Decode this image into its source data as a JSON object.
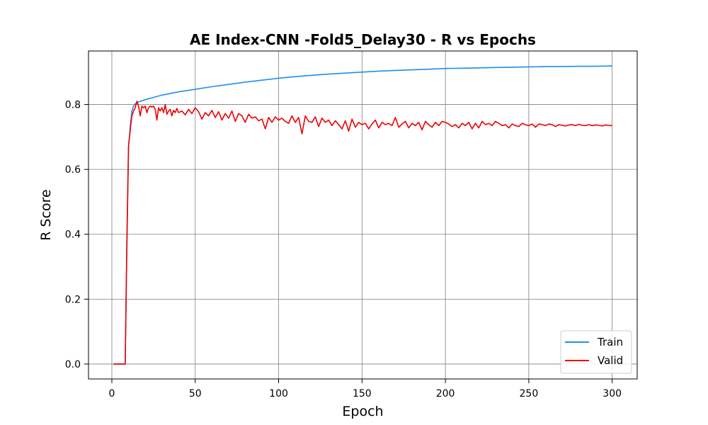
{
  "chart_data": {
    "type": "line",
    "title": "AE Index-CNN -Fold5_Delay30 - R vs Epochs",
    "xlabel": "Epoch",
    "ylabel": "R Score",
    "xlim": [
      -14,
      315
    ],
    "ylim": [
      -0.046,
      0.965
    ],
    "xticks": [
      0,
      50,
      100,
      150,
      200,
      250,
      300
    ],
    "yticks": [
      0.0,
      0.2,
      0.4,
      0.6,
      0.8
    ],
    "ytick_labels": [
      "0.0",
      "0.2",
      "0.4",
      "0.6",
      "0.8"
    ],
    "grid": true,
    "legend_position": "lower-right",
    "series": [
      {
        "name": "Train",
        "color": "#1f8ef1",
        "x": [
          1,
          8,
          9,
          10,
          11,
          12,
          13,
          14,
          15,
          16,
          20,
          25,
          30,
          40,
          50,
          60,
          70,
          80,
          90,
          100,
          110,
          120,
          130,
          140,
          150,
          160,
          170,
          180,
          190,
          200,
          210,
          220,
          230,
          240,
          250,
          260,
          270,
          280,
          290,
          300
        ],
        "y": [
          0.0,
          0.0,
          0.35,
          0.67,
          0.73,
          0.78,
          0.795,
          0.802,
          0.805,
          0.808,
          0.815,
          0.822,
          0.829,
          0.839,
          0.847,
          0.855,
          0.862,
          0.869,
          0.875,
          0.881,
          0.886,
          0.89,
          0.894,
          0.897,
          0.9,
          0.903,
          0.905,
          0.907,
          0.909,
          0.911,
          0.912,
          0.913,
          0.914,
          0.915,
          0.916,
          0.917,
          0.917,
          0.918,
          0.918,
          0.919
        ]
      },
      {
        "name": "Valid",
        "color": "#ee0000",
        "x": [
          1,
          8,
          9,
          10,
          11,
          12,
          13,
          14,
          15,
          16,
          17,
          18,
          19,
          20,
          21,
          22,
          23,
          24,
          25,
          26,
          27,
          28,
          29,
          30,
          31,
          32,
          33,
          34,
          35,
          36,
          37,
          38,
          39,
          40,
          42,
          44,
          46,
          48,
          50,
          52,
          54,
          56,
          58,
          60,
          62,
          64,
          66,
          68,
          70,
          72,
          74,
          76,
          78,
          80,
          82,
          84,
          86,
          88,
          90,
          92,
          94,
          96,
          98,
          100,
          102,
          104,
          106,
          108,
          110,
          112,
          114,
          116,
          118,
          120,
          122,
          124,
          126,
          128,
          130,
          132,
          134,
          136,
          138,
          140,
          142,
          144,
          146,
          148,
          150,
          152,
          154,
          156,
          158,
          160,
          162,
          164,
          166,
          168,
          170,
          172,
          174,
          176,
          178,
          180,
          182,
          184,
          186,
          188,
          190,
          192,
          194,
          196,
          198,
          200,
          202,
          204,
          206,
          208,
          210,
          212,
          214,
          216,
          218,
          220,
          222,
          224,
          226,
          228,
          230,
          232,
          234,
          236,
          238,
          240,
          242,
          244,
          246,
          248,
          250,
          252,
          254,
          256,
          258,
          260,
          262,
          264,
          266,
          268,
          270,
          272,
          274,
          276,
          278,
          280,
          282,
          284,
          286,
          288,
          290,
          292,
          294,
          296,
          298,
          300
        ],
        "y": [
          0.0,
          0.0,
          0.38,
          0.67,
          0.72,
          0.765,
          0.78,
          0.79,
          0.81,
          0.795,
          0.765,
          0.795,
          0.79,
          0.795,
          0.775,
          0.79,
          0.795,
          0.792,
          0.795,
          0.785,
          0.752,
          0.79,
          0.78,
          0.79,
          0.775,
          0.8,
          0.77,
          0.78,
          0.785,
          0.765,
          0.782,
          0.775,
          0.788,
          0.775,
          0.78,
          0.768,
          0.785,
          0.772,
          0.79,
          0.778,
          0.755,
          0.775,
          0.765,
          0.782,
          0.76,
          0.778,
          0.752,
          0.772,
          0.758,
          0.78,
          0.748,
          0.772,
          0.765,
          0.745,
          0.77,
          0.758,
          0.762,
          0.75,
          0.755,
          0.725,
          0.76,
          0.745,
          0.762,
          0.752,
          0.758,
          0.748,
          0.742,
          0.765,
          0.745,
          0.76,
          0.71,
          0.765,
          0.748,
          0.745,
          0.762,
          0.732,
          0.758,
          0.745,
          0.752,
          0.735,
          0.75,
          0.738,
          0.725,
          0.75,
          0.718,
          0.755,
          0.73,
          0.745,
          0.738,
          0.742,
          0.725,
          0.74,
          0.752,
          0.728,
          0.745,
          0.738,
          0.742,
          0.735,
          0.76,
          0.73,
          0.74,
          0.748,
          0.728,
          0.742,
          0.735,
          0.745,
          0.722,
          0.748,
          0.738,
          0.73,
          0.745,
          0.735,
          0.748,
          0.745,
          0.74,
          0.732,
          0.738,
          0.728,
          0.742,
          0.735,
          0.745,
          0.725,
          0.742,
          0.728,
          0.748,
          0.738,
          0.742,
          0.735,
          0.748,
          0.742,
          0.735,
          0.738,
          0.728,
          0.74,
          0.735,
          0.732,
          0.742,
          0.738,
          0.735,
          0.74,
          0.73,
          0.74,
          0.738,
          0.735,
          0.74,
          0.738,
          0.732,
          0.738,
          0.736,
          0.734,
          0.737,
          0.738,
          0.735,
          0.739,
          0.736,
          0.735,
          0.738,
          0.735,
          0.737,
          0.736,
          0.734,
          0.737,
          0.736,
          0.735
        ]
      }
    ]
  }
}
